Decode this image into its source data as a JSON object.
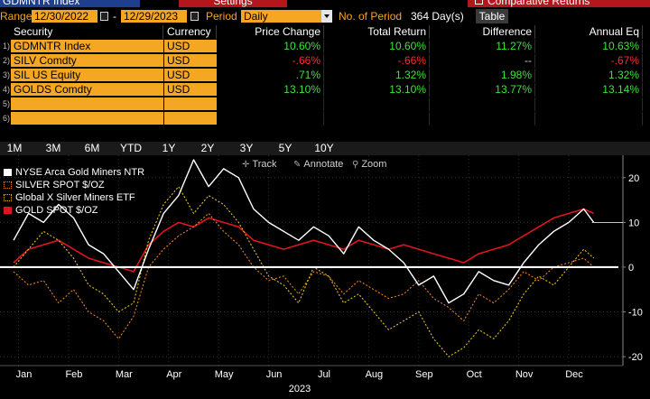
{
  "header": {
    "ticker": "GDMNTR Index",
    "settings_label": "Settings",
    "comparative_label": "Comparative Returns"
  },
  "range_bar": {
    "range_label": "Range",
    "start_date": "12/30/2022",
    "separator": "-",
    "end_date": "12/29/2023",
    "period_label": "Period",
    "period_value": "Daily",
    "num_periods_label": "No. of Period",
    "num_periods_value": "364 Day(s)",
    "table_label": "Table"
  },
  "table": {
    "headers": [
      "Security",
      "Currency",
      "Price Change",
      "Total Return",
      "Difference",
      "Annual Eq"
    ],
    "row_numbers": [
      "1)",
      "2)",
      "3)",
      "4)",
      "5)",
      "6)"
    ],
    "rows": [
      {
        "security": "GDMNTR Index",
        "currency": "USD",
        "price_change": "10.60%",
        "total_return": "10.60%",
        "difference": "11.27%",
        "annual_eq": "10.63%",
        "pc_color": "pos",
        "tr_color": "pos",
        "df_color": "pos",
        "ae_color": "pos"
      },
      {
        "security": "SILV Comdty",
        "currency": "USD",
        "price_change": "-.66%",
        "total_return": "-.66%",
        "difference": "--",
        "annual_eq": "-.67%",
        "pc_color": "neg",
        "tr_color": "neg",
        "df_color": "nil",
        "ae_color": "neg"
      },
      {
        "security": "SIL US Equity",
        "currency": "USD",
        "price_change": ".71%",
        "total_return": "1.32%",
        "difference": "1.98%",
        "annual_eq": "1.32%",
        "pc_color": "pos",
        "tr_color": "pos",
        "df_color": "pos",
        "ae_color": "pos"
      },
      {
        "security": "GOLDS Comdty",
        "currency": "USD",
        "price_change": "13.10%",
        "total_return": "13.10%",
        "difference": "13.77%",
        "annual_eq": "13.14%",
        "pc_color": "pos",
        "tr_color": "pos",
        "df_color": "pos",
        "ae_color": "pos"
      },
      {
        "security": "",
        "currency": "",
        "price_change": "",
        "total_return": "",
        "difference": "",
        "annual_eq": "",
        "pc_color": "nil",
        "tr_color": "nil",
        "df_color": "nil",
        "ae_color": "nil"
      },
      {
        "security": "",
        "currency": "",
        "price_change": "",
        "total_return": "",
        "difference": "",
        "annual_eq": "",
        "pc_color": "nil",
        "tr_color": "nil",
        "df_color": "nil",
        "ae_color": "nil"
      }
    ]
  },
  "periods": [
    "1M",
    "3M",
    "6M",
    "YTD",
    "1Y",
    "2Y",
    "3Y",
    "5Y",
    "10Y"
  ],
  "chart_toolbar": {
    "track": "Track",
    "annotate": "Annotate",
    "zoom": "Zoom"
  },
  "chart_data": {
    "type": "line",
    "x_unit": "month_index",
    "xlabel": "2023",
    "x_ticks": [
      "Jan",
      "Feb",
      "Mar",
      "Apr",
      "May",
      "Jun",
      "Jul",
      "Aug",
      "Sep",
      "Oct",
      "Nov",
      "Dec"
    ],
    "y_ticks": [
      20,
      10,
      0,
      -10,
      -20
    ],
    "ylim": [
      -22,
      25
    ],
    "xlim": [
      0,
      12
    ],
    "legend_position": "top-left",
    "series": [
      {
        "name": "NYSE Arca Gold Miners NTR",
        "color": "#ffffff",
        "x": [
          0.0,
          0.3,
          0.6,
          0.9,
          1.2,
          1.5,
          1.8,
          2.1,
          2.4,
          2.7,
          3.0,
          3.3,
          3.6,
          3.9,
          4.2,
          4.5,
          4.8,
          5.1,
          5.4,
          5.7,
          6.0,
          6.3,
          6.6,
          6.9,
          7.2,
          7.5,
          7.8,
          8.1,
          8.4,
          8.7,
          9.0,
          9.3,
          9.6,
          9.9,
          10.2,
          10.5,
          10.8,
          11.1,
          11.4,
          11.6
        ],
        "y": [
          6,
          12,
          10,
          14,
          11,
          5,
          3,
          -1,
          -5,
          4,
          12,
          16,
          24,
          18,
          22,
          20,
          13,
          10,
          8,
          6,
          9,
          7,
          3,
          9,
          6,
          4,
          1,
          -4,
          -2,
          -8,
          -6,
          -1,
          -3,
          -4,
          1,
          5,
          8,
          10,
          13,
          10
        ]
      },
      {
        "name": "SILVER SPOT $/OZ",
        "color": "#e8821e",
        "x": [
          0.0,
          0.3,
          0.6,
          0.9,
          1.2,
          1.5,
          1.8,
          2.1,
          2.4,
          2.7,
          3.0,
          3.3,
          3.6,
          3.9,
          4.2,
          4.5,
          4.8,
          5.1,
          5.4,
          5.7,
          6.0,
          6.3,
          6.6,
          6.9,
          7.2,
          7.5,
          7.8,
          8.1,
          8.4,
          8.7,
          9.0,
          9.3,
          9.6,
          9.9,
          10.2,
          10.5,
          10.8,
          11.1,
          11.4,
          11.6
        ],
        "y": [
          -1,
          -4,
          -3,
          -8,
          -5,
          -10,
          -12,
          -16,
          -11,
          0,
          4,
          7,
          9,
          12,
          8,
          5,
          0,
          -3,
          -2,
          -6,
          -1,
          -2,
          -6,
          -3,
          -5,
          -7,
          -6,
          -3,
          -7,
          -9,
          -12,
          -6,
          -8,
          -5,
          -1,
          -3,
          0,
          1,
          2,
          0
        ]
      },
      {
        "name": "Global X Silver Miners ETF",
        "color": "#e6c21a",
        "x": [
          0.0,
          0.3,
          0.6,
          0.9,
          1.2,
          1.5,
          1.8,
          2.1,
          2.4,
          2.7,
          3.0,
          3.3,
          3.6,
          3.9,
          4.2,
          4.5,
          4.8,
          5.1,
          5.4,
          5.7,
          6.0,
          6.3,
          6.6,
          6.9,
          7.2,
          7.5,
          7.8,
          8.1,
          8.4,
          8.7,
          9.0,
          9.3,
          9.6,
          9.9,
          10.2,
          10.5,
          10.8,
          11.1,
          11.4,
          11.6
        ],
        "y": [
          0,
          4,
          8,
          6,
          2,
          -4,
          -6,
          -10,
          -8,
          6,
          14,
          18,
          12,
          16,
          14,
          10,
          4,
          -2,
          -4,
          -8,
          0,
          -2,
          -8,
          -6,
          -10,
          -14,
          -12,
          -10,
          -16,
          -20,
          -18,
          -14,
          -16,
          -12,
          -6,
          -2,
          -4,
          0,
          4,
          2
        ]
      },
      {
        "name": "GOLD SPOT $/OZ",
        "color": "#e0141e",
        "x": [
          0.0,
          0.3,
          0.6,
          0.9,
          1.2,
          1.5,
          1.8,
          2.1,
          2.4,
          2.7,
          3.0,
          3.3,
          3.6,
          3.9,
          4.2,
          4.5,
          4.8,
          5.1,
          5.4,
          5.7,
          6.0,
          6.3,
          6.6,
          6.9,
          7.2,
          7.5,
          7.8,
          8.1,
          8.4,
          8.7,
          9.0,
          9.3,
          9.6,
          9.9,
          10.2,
          10.5,
          10.8,
          11.1,
          11.4,
          11.6
        ],
        "y": [
          1,
          4,
          5,
          6,
          4,
          2,
          1,
          0,
          -1,
          5,
          8,
          10,
          9,
          11,
          10,
          9,
          6,
          5,
          4,
          5,
          6,
          5,
          4,
          6,
          5,
          4,
          5,
          4,
          3,
          2,
          1,
          3,
          4,
          5,
          7,
          9,
          11,
          12,
          13,
          12
        ]
      }
    ]
  }
}
